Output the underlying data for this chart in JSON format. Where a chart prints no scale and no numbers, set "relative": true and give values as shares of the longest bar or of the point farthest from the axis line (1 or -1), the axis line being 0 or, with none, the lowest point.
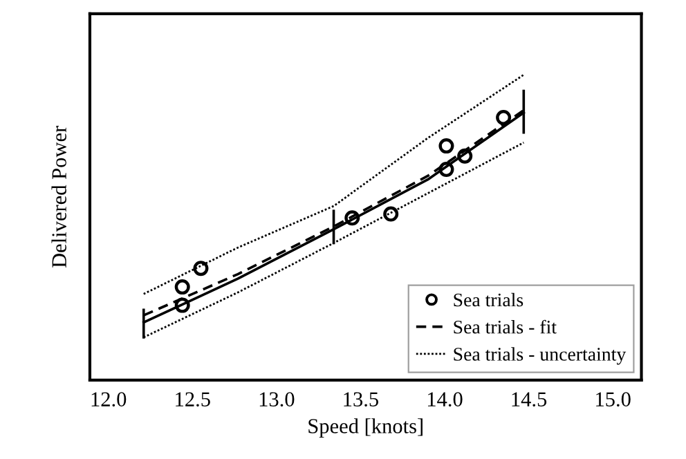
{
  "chart_data": {
    "type": "scatter",
    "relative": true,
    "xlabel": "Speed [knots]",
    "ylabel": "Delivered Power",
    "xlim": [
      11.89,
      15.17
    ],
    "xticks": [
      {
        "value": 12,
        "label": "12.0"
      },
      {
        "value": 12.5,
        "label": "12.5"
      },
      {
        "value": 13,
        "label": "13.0"
      },
      {
        "value": 13.5,
        "label": "13.5"
      },
      {
        "value": 14,
        "label": "14.0"
      },
      {
        "value": 14.5,
        "label": "14.5"
      },
      {
        "value": 15,
        "label": "15.0"
      }
    ],
    "grid": false,
    "legend": "bottom right",
    "series": [
      {
        "name": "Sea trials",
        "marker": "circle",
        "color": "#000000",
        "x": [
          12.44,
          12.44,
          12.55,
          13.45,
          13.68,
          14.01,
          14.01,
          14.12,
          14.35
        ],
        "values": [
          0.305,
          0.245,
          0.366,
          0.531,
          0.544,
          0.767,
          0.69,
          0.734,
          0.86
        ]
      },
      {
        "name": "Sea trials - fit",
        "type": "line",
        "line_style": "dashed",
        "color": "#000000",
        "x": [
          12.21,
          12.77,
          13.34,
          13.9,
          14.47
        ],
        "values": [
          0.212,
          0.347,
          0.503,
          0.669,
          0.884
        ]
      },
      {
        "type": "line",
        "line_style": "solid",
        "color": "#000000",
        "x": [
          12.21,
          12.21
        ],
        "values": [
          0.14,
          0.23
        ]
      },
      {
        "type": "line",
        "line_style": "solid",
        "color": "#000000",
        "x": [
          13.34,
          13.34
        ],
        "values": [
          0.449,
          0.554
        ]
      },
      {
        "type": "line",
        "line_style": "solid",
        "color": "#000000",
        "x": [
          14.47,
          14.47
        ],
        "values": [
          0.811,
          0.947
        ]
      },
      {
        "name": "Sea trials - uncertainty",
        "type": "line",
        "line_style": "dotted",
        "color": "#000000",
        "x": [
          12.21,
          12.77,
          13.34,
          13.9,
          14.47
        ],
        "values": [
          0.282,
          0.434,
          0.57,
          0.793,
          1.0
        ]
      },
      {
        "type": "line",
        "line_style": "dotted",
        "color": "#000000",
        "x": [
          12.21,
          12.77,
          13.34,
          13.9,
          14.47
        ],
        "values": [
          0.14,
          0.287,
          0.449,
          0.612,
          0.778
        ]
      },
      {
        "type": "line",
        "line_style": "solid",
        "color": "#000000",
        "x": [
          12.21,
          12.77,
          13.34,
          13.9,
          14.47
        ],
        "values": [
          0.189,
          0.332,
          0.494,
          0.657,
          0.876
        ]
      }
    ]
  }
}
